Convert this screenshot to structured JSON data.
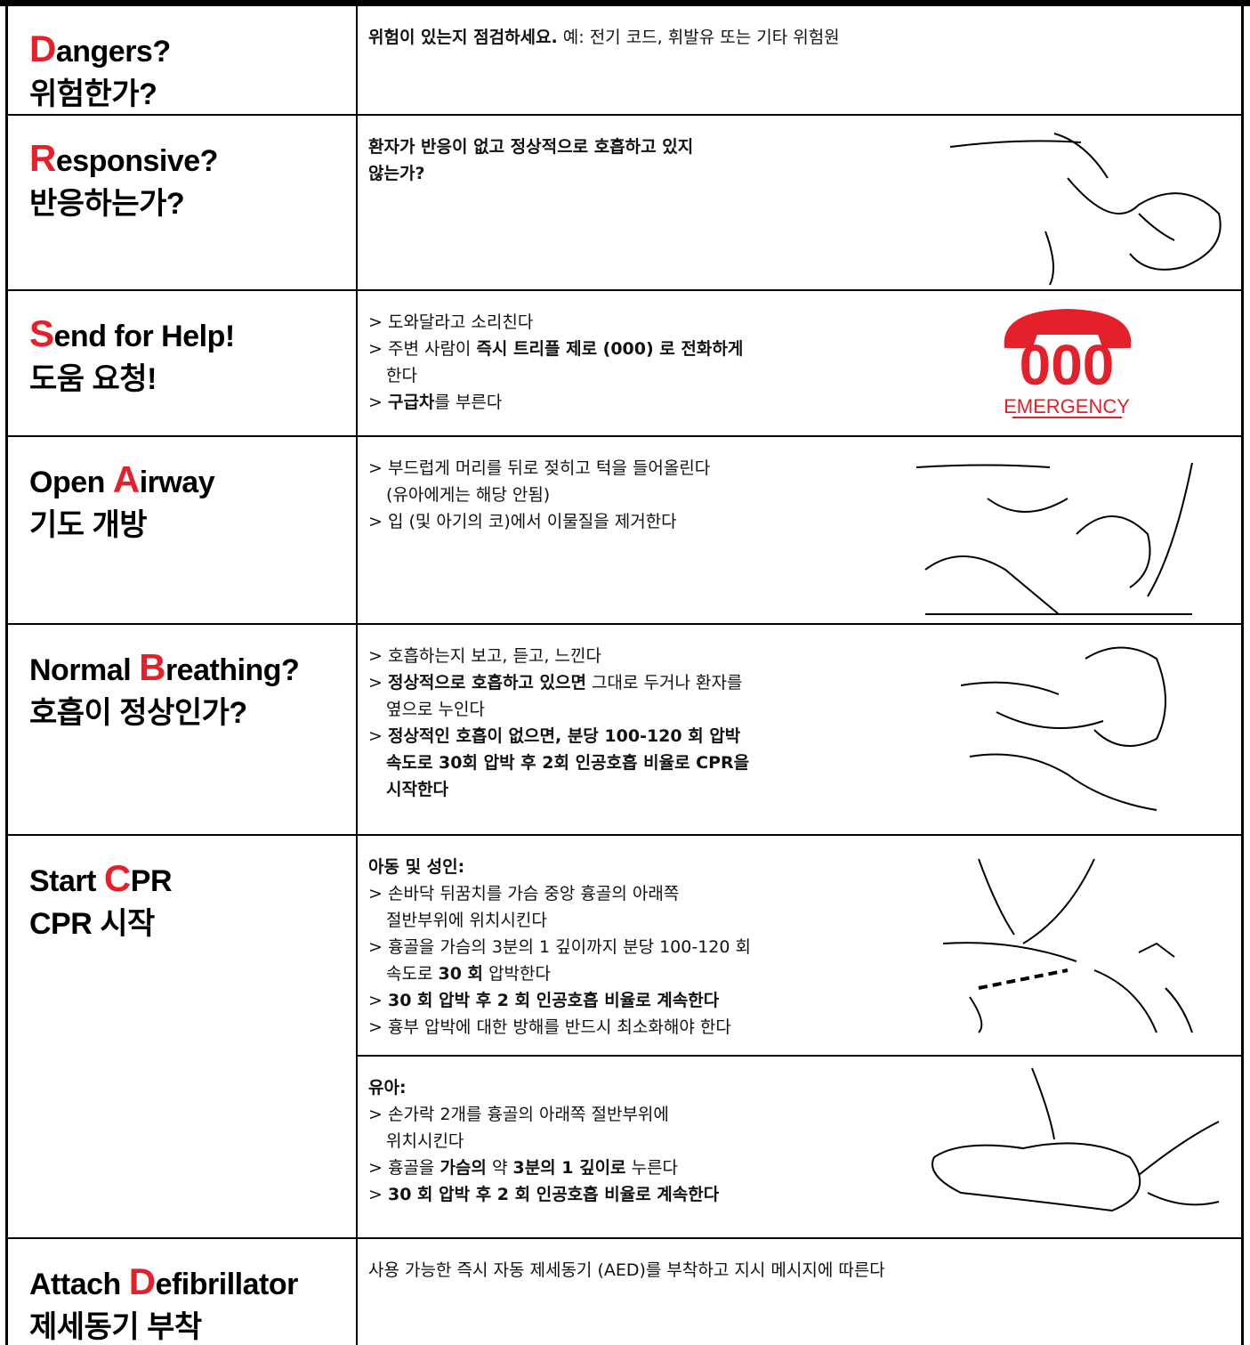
{
  "rows": [
    {
      "title": [
        {
          "text": "D",
          "accent": true
        },
        {
          "text": "angers?"
        }
      ],
      "subtitle": "위험한가?",
      "cells": [
        {
          "lines": [
            {
              "segments": [
                {
                  "text": "위험이 있는지 점검하세요.",
                  "bold": true
                },
                {
                  "text": " 예: 전기 코드, 휘발유 또는 기타 위험원"
                }
              ]
            }
          ]
        }
      ]
    },
    {
      "title": [
        {
          "text": "R",
          "accent": true
        },
        {
          "text": "esponsive?"
        }
      ],
      "subtitle": "반응하는가?",
      "cells": [
        {
          "lines": [
            {
              "segments": [
                {
                  "text": "환자가 반응이 없고 정상적으로 호흡하고 있지",
                  "bold": true
                }
              ]
            },
            {
              "segments": [
                {
                  "text": "않는가?",
                  "bold": true
                }
              ]
            }
          ]
        }
      ]
    },
    {
      "title": [
        {
          "text": "S",
          "accent": true
        },
        {
          "text": "end for Help!"
        }
      ],
      "subtitle": "도움 요청!",
      "cells": [
        {
          "lines": [
            {
              "segments": [
                {
                  "text": "> 도와달라고 소리친다"
                }
              ]
            },
            {
              "segments": [
                {
                  "text": "> 주변 사람이 "
                },
                {
                  "text": "즉시 트리플 제로 (000) 로 전화하게",
                  "bold": true
                }
              ]
            },
            {
              "indent": true,
              "segments": [
                {
                  "text": "한다"
                }
              ]
            },
            {
              "segments": [
                {
                  "text": "> "
                },
                {
                  "text": "구급차",
                  "bold": true
                },
                {
                  "text": "를 부른다"
                }
              ]
            }
          ]
        }
      ]
    },
    {
      "title": [
        {
          "text": "Open "
        },
        {
          "text": "A",
          "accent": true
        },
        {
          "text": "irway"
        }
      ],
      "subtitle": "기도 개방",
      "cells": [
        {
          "lines": [
            {
              "segments": [
                {
                  "text": "> 부드럽게 머리를 뒤로 젖히고 턱을 들어올린다"
                }
              ]
            },
            {
              "indent": true,
              "segments": [
                {
                  "text": "(유아에게는 해당 안됨)"
                }
              ]
            },
            {
              "segments": [
                {
                  "text": "> 입 (및 아기의 코)에서 이물질을 제거한다"
                }
              ]
            }
          ]
        }
      ]
    },
    {
      "title": [
        {
          "text": "Normal "
        },
        {
          "text": "B",
          "accent": true
        },
        {
          "text": "reathing?"
        }
      ],
      "subtitle": "호흡이 정상인가?",
      "cells": [
        {
          "lines": [
            {
              "segments": [
                {
                  "text": "> 호흡하는지 보고, 듣고, 느낀다"
                }
              ]
            },
            {
              "segments": [
                {
                  "text": "> "
                },
                {
                  "text": "정상적으로 호흡하고 있으면",
                  "bold": true
                },
                {
                  "text": " 그대로 두거나 환자를"
                }
              ]
            },
            {
              "indent": true,
              "segments": [
                {
                  "text": "옆으로 누인다"
                }
              ]
            },
            {
              "segments": [
                {
                  "text": "> "
                },
                {
                  "text": "정상적인 호흡이 없으면, 분당 100-120 회 압박",
                  "bold": true
                }
              ]
            },
            {
              "indent": true,
              "segments": [
                {
                  "text": "속도로 30회 압박 후 2회 인공호흡 비율로 CPR을",
                  "bold": true
                }
              ]
            },
            {
              "indent": true,
              "segments": [
                {
                  "text": "시작한다",
                  "bold": true
                }
              ]
            }
          ]
        }
      ]
    },
    {
      "title": [
        {
          "text": "Start "
        },
        {
          "text": "C",
          "accent": true
        },
        {
          "text": "PR"
        }
      ],
      "subtitle": "CPR 시작",
      "cells": [
        {
          "lines": [
            {
              "segments": [
                {
                  "text": "아동 및 성인:",
                  "bold": true
                }
              ]
            },
            {
              "segments": [
                {
                  "text": "> 손바닥 뒤꿈치를 가슴 중앙 흉골의 아래쪽"
                }
              ]
            },
            {
              "indent": true,
              "segments": [
                {
                  "text": "절반부위에 위치시킨다"
                }
              ]
            },
            {
              "segments": [
                {
                  "text": "> 흉골을 가슴의 3분의 1 깊이까지 분당 100-120 회"
                }
              ]
            },
            {
              "indent": true,
              "segments": [
                {
                  "text": "속도로 "
                },
                {
                  "text": "30 회",
                  "bold": true
                },
                {
                  "text": " 압박한다"
                }
              ]
            },
            {
              "segments": [
                {
                  "text": "> "
                },
                {
                  "text": "30 회 압박 후 2 회 인공호흡 비율로 계속한다",
                  "bold": true
                }
              ]
            },
            {
              "segments": [
                {
                  "text": "> 흉부 압박에 대한 방해를 반드시 최소화해야 한다"
                }
              ]
            }
          ]
        },
        {
          "lines": [
            {
              "segments": [
                {
                  "text": "유아:",
                  "bold": true
                }
              ]
            },
            {
              "segments": [
                {
                  "text": "> 손가락 2개를 흉골의 아래쪽 절반부위에"
                }
              ]
            },
            {
              "indent": true,
              "segments": [
                {
                  "text": "위치시킨다"
                }
              ]
            },
            {
              "segments": [
                {
                  "text": "> 흉골을 "
                },
                {
                  "text": "가슴의",
                  "bold": true
                },
                {
                  "text": " 약 "
                },
                {
                  "text": "3분의 1 깊이로",
                  "bold": true
                },
                {
                  "text": " 누른다"
                }
              ]
            },
            {
              "segments": [
                {
                  "text": "> "
                },
                {
                  "text": "30 회 압박 후 2 회 인공호흡 비율로 계속한다",
                  "bold": true
                }
              ]
            }
          ]
        }
      ]
    },
    {
      "title": [
        {
          "text": "Attach "
        },
        {
          "text": "D",
          "accent": true
        },
        {
          "text": "efibrillator"
        }
      ],
      "subtitle": "제세동기 부착",
      "cells": [
        {
          "lines": [
            {
              "segments": [
                {
                  "text": "사용 가능한 즉시 자동 제세동기 (AED)를 부착하고 지시 메시지에 따른다"
                }
              ]
            }
          ]
        }
      ]
    }
  ],
  "emergency_sign": {
    "number": "000",
    "label": "EMERGENCY"
  }
}
